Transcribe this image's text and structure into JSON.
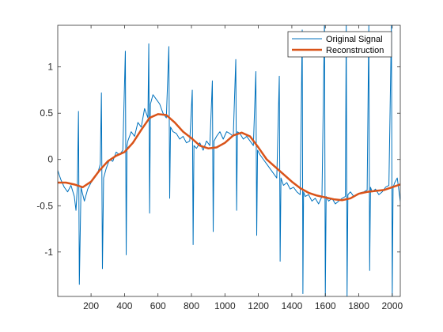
{
  "chart_data": {
    "type": "line",
    "title": "",
    "xlabel": "",
    "ylabel": "",
    "xlim": [
      1,
      2048
    ],
    "ylim": [
      -1.48,
      1.45
    ],
    "grid": false,
    "legend_position": "top-right",
    "x_ticks": [
      200,
      400,
      600,
      800,
      1000,
      1200,
      1400,
      1600,
      1800,
      2000
    ],
    "x_tick_labels": [
      "200",
      "400",
      "600",
      "800",
      "1000",
      "1200",
      "1400",
      "1600",
      "1800",
      "2000"
    ],
    "y_ticks": [
      -1,
      -0.5,
      0,
      0.5,
      1
    ],
    "y_tick_labels": [
      "-1",
      "-0.5",
      "0",
      "0.5",
      "1"
    ],
    "series": [
      {
        "name": "Original Signal",
        "color": "#0072BD",
        "line_width": 1,
        "x": [
          1,
          20,
          40,
          60,
          80,
          100,
          110,
          118,
          125,
          130,
          140,
          160,
          180,
          200,
          220,
          240,
          255,
          262,
          268,
          275,
          290,
          310,
          330,
          350,
          370,
          390,
          405,
          410,
          415,
          420,
          440,
          460,
          480,
          500,
          520,
          540,
          545,
          550,
          555,
          570,
          590,
          610,
          630,
          650,
          665,
          670,
          675,
          690,
          710,
          730,
          750,
          770,
          790,
          805,
          810,
          815,
          830,
          850,
          870,
          890,
          910,
          925,
          930,
          935,
          950,
          970,
          990,
          1010,
          1030,
          1050,
          1065,
          1070,
          1075,
          1090,
          1110,
          1130,
          1150,
          1170,
          1185,
          1190,
          1195,
          1210,
          1230,
          1250,
          1270,
          1290,
          1310,
          1325,
          1330,
          1335,
          1350,
          1370,
          1390,
          1410,
          1430,
          1450,
          1462,
          1466,
          1470,
          1480,
          1500,
          1520,
          1540,
          1560,
          1580,
          1595,
          1600,
          1605,
          1620,
          1640,
          1660,
          1680,
          1700,
          1720,
          1725,
          1730,
          1735,
          1750,
          1770,
          1790,
          1810,
          1830,
          1850,
          1860,
          1865,
          1870,
          1880,
          1900,
          1920,
          1940,
          1960,
          1980,
          1995,
          2000,
          2005,
          2015,
          2030,
          2048
        ],
        "y": [
          -0.12,
          -0.22,
          -0.3,
          -0.35,
          -0.28,
          -0.4,
          -0.55,
          -0.3,
          0.52,
          -1.35,
          -0.3,
          -0.45,
          -0.32,
          -0.25,
          -0.2,
          -0.15,
          -0.05,
          0.72,
          -1.18,
          -0.2,
          -0.1,
          0.0,
          -0.02,
          0.08,
          0.05,
          0.1,
          1.17,
          -1.03,
          0.15,
          0.2,
          0.3,
          0.25,
          0.4,
          0.35,
          0.55,
          0.45,
          1.25,
          -0.58,
          0.6,
          0.7,
          0.65,
          0.6,
          0.5,
          0.45,
          1.22,
          -0.42,
          0.35,
          0.3,
          0.28,
          0.22,
          0.25,
          0.18,
          0.2,
          0.75,
          -0.92,
          0.15,
          0.12,
          0.18,
          0.1,
          0.2,
          0.15,
          0.85,
          -0.78,
          0.2,
          0.25,
          0.3,
          0.22,
          0.3,
          0.28,
          0.25,
          1.08,
          -0.55,
          0.3,
          0.28,
          0.22,
          0.25,
          0.2,
          0.15,
          0.95,
          -0.82,
          0.1,
          0.05,
          0.0,
          -0.05,
          -0.1,
          -0.15,
          -0.2,
          0.9,
          -1.1,
          -0.2,
          -0.28,
          -0.25,
          -0.32,
          -0.3,
          -0.35,
          -0.38,
          1.4,
          -1.45,
          -0.35,
          -0.4,
          -0.38,
          -0.45,
          -0.42,
          -0.48,
          -0.4,
          1.5,
          -1.48,
          -0.4,
          -0.45,
          -0.42,
          -0.48,
          -0.45,
          -0.42,
          -0.4,
          1.5,
          -1.48,
          -0.38,
          -0.35,
          -0.4,
          -0.38,
          -0.36,
          -0.35,
          -0.33,
          1.45,
          -1.2,
          -0.3,
          -0.35,
          -0.32,
          -0.38,
          -0.35,
          -0.3,
          -0.28,
          1.45,
          -1.48,
          -0.3,
          -0.25,
          -0.2,
          -0.45
        ]
      },
      {
        "name": "Reconstruction",
        "color": "#D95319",
        "line_width": 2.5,
        "x": [
          1,
          50,
          100,
          150,
          200,
          250,
          300,
          350,
          400,
          450,
          500,
          550,
          600,
          650,
          700,
          750,
          800,
          850,
          900,
          950,
          1000,
          1050,
          1100,
          1150,
          1200,
          1250,
          1300,
          1350,
          1400,
          1450,
          1500,
          1550,
          1600,
          1650,
          1700,
          1750,
          1800,
          1850,
          1900,
          1950,
          2000,
          2048
        ],
        "y": [
          -0.25,
          -0.25,
          -0.27,
          -0.3,
          -0.24,
          -0.12,
          -0.02,
          0.04,
          0.08,
          0.18,
          0.32,
          0.45,
          0.49,
          0.48,
          0.4,
          0.3,
          0.23,
          0.15,
          0.12,
          0.13,
          0.18,
          0.26,
          0.29,
          0.25,
          0.13,
          0.0,
          -0.08,
          -0.16,
          -0.24,
          -0.31,
          -0.36,
          -0.39,
          -0.41,
          -0.43,
          -0.44,
          -0.42,
          -0.37,
          -0.35,
          -0.34,
          -0.33,
          -0.3,
          -0.27
        ]
      }
    ]
  }
}
